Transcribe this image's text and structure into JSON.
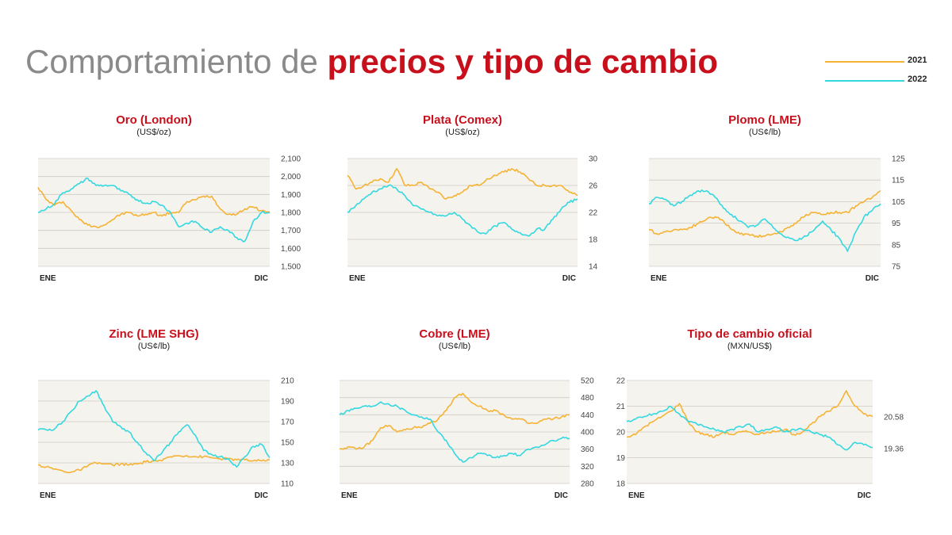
{
  "header": {
    "title_light": "Comportamiento de",
    "title_bold": "precios y tipo de cambio"
  },
  "legend": [
    {
      "label": "2021",
      "color": "#f5b335"
    },
    {
      "label": "2022",
      "color": "#35d8e0"
    }
  ],
  "colors": {
    "y2021": "#f5b335",
    "y2022": "#35d8e0",
    "accent": "#c8101c",
    "plot_bg": "#f5f3ee",
    "grid": "#cfcbc2"
  },
  "chart_data": [
    {
      "type": "line",
      "title": "Oro (London)",
      "unit": "(US$/oz)",
      "x_start": "ENE",
      "x_end": "DIC",
      "yticks": [
        "1,500",
        "1,600",
        "1,700",
        "1,800",
        "1,900",
        "2,000",
        "2,100"
      ],
      "ylim": [
        1500,
        2100
      ],
      "series": [
        {
          "name": "2021",
          "values": [
            1940,
            1870,
            1840,
            1860,
            1810,
            1760,
            1730,
            1720,
            1730,
            1760,
            1790,
            1800,
            1780,
            1790,
            1800,
            1780,
            1800,
            1800,
            1860,
            1870,
            1890,
            1890,
            1820,
            1790,
            1790,
            1820,
            1830,
            1810,
            1800
          ]
        },
        {
          "name": "2022",
          "values": [
            1800,
            1820,
            1850,
            1910,
            1930,
            1960,
            1990,
            1950,
            1950,
            1950,
            1920,
            1900,
            1870,
            1850,
            1860,
            1840,
            1800,
            1720,
            1740,
            1750,
            1710,
            1690,
            1720,
            1700,
            1660,
            1640,
            1750,
            1800,
            1800
          ]
        }
      ]
    },
    {
      "type": "line",
      "title": "Plata (Comex)",
      "unit": "(US$/oz)",
      "x_start": "ENE",
      "x_end": "DIC",
      "yticks": [
        "14",
        "18",
        "22",
        "26",
        "30"
      ],
      "ylim": [
        14,
        30
      ],
      "series": [
        {
          "name": "2021",
          "values": [
            27.5,
            25.5,
            26,
            26.5,
            27,
            26.5,
            28.5,
            26,
            26,
            26.5,
            25.5,
            25,
            24,
            24.5,
            25,
            26,
            26,
            27,
            27.5,
            28,
            28.5,
            28,
            27,
            26,
            26,
            26,
            26,
            25,
            24.5
          ]
        },
        {
          "name": "2022",
          "values": [
            22,
            23,
            24,
            25,
            25.5,
            26,
            25.5,
            24.5,
            23,
            22.5,
            22,
            21.5,
            21.5,
            22,
            21,
            20,
            19,
            19,
            20,
            20.5,
            19.5,
            19,
            18.5,
            19.5,
            19.5,
            21,
            22.5,
            23.5,
            24
          ]
        }
      ]
    },
    {
      "type": "line",
      "title": "Plomo (LME)",
      "unit": "(US¢/lb)",
      "x_start": "ENE",
      "x_end": "DIC",
      "yticks": [
        "75",
        "85",
        "95",
        "105",
        "115",
        "125"
      ],
      "ylim": [
        75,
        125
      ],
      "series": [
        {
          "name": "2021",
          "values": [
            92,
            90,
            91,
            92,
            92,
            93,
            95,
            97,
            98,
            96,
            92,
            90,
            90,
            89,
            89,
            90,
            91,
            93,
            96,
            99,
            100,
            99,
            100,
            100,
            100,
            103,
            105,
            107,
            110
          ]
        },
        {
          "name": "2022",
          "values": [
            104,
            107,
            106,
            103,
            105,
            108,
            110,
            110,
            107,
            102,
            99,
            96,
            93,
            94,
            97,
            93,
            90,
            88,
            87,
            89,
            92,
            96,
            92,
            88,
            82,
            91,
            98,
            101,
            104
          ]
        }
      ]
    },
    {
      "type": "line",
      "title": "Zinc (LME SHG)",
      "unit": "(US¢/lb)",
      "x_start": "ENE",
      "x_end": "DIC",
      "yticks": [
        "110",
        "130",
        "150",
        "170",
        "190",
        "210"
      ],
      "ylim": [
        110,
        210
      ],
      "series": [
        {
          "name": "2021",
          "values": [
            128,
            126,
            124,
            122,
            121,
            123,
            127,
            130,
            129,
            128,
            129,
            128,
            129,
            131,
            132,
            132,
            136,
            137,
            137,
            136,
            136,
            135,
            134,
            134,
            133,
            133,
            132,
            132,
            133
          ]
        },
        {
          "name": "2022",
          "values": [
            162,
            162,
            163,
            170,
            180,
            190,
            195,
            200,
            185,
            170,
            165,
            160,
            150,
            140,
            132,
            140,
            150,
            160,
            167,
            157,
            142,
            138,
            136,
            134,
            126,
            136,
            146,
            148,
            135
          ]
        }
      ]
    },
    {
      "type": "line",
      "title": "Cobre (LME)",
      "unit": "(US¢/lb)",
      "x_start": "ENE",
      "x_end": "DIC",
      "yticks": [
        "280",
        "320",
        "360",
        "400",
        "440",
        "480",
        "520"
      ],
      "ylim": [
        280,
        520
      ],
      "series": [
        {
          "name": "2021",
          "values": [
            360,
            365,
            360,
            365,
            380,
            410,
            415,
            400,
            405,
            410,
            410,
            420,
            430,
            450,
            480,
            490,
            470,
            460,
            450,
            450,
            440,
            430,
            430,
            420,
            420,
            430,
            430,
            435,
            440
          ]
        },
        {
          "name": "2022",
          "values": [
            440,
            450,
            455,
            460,
            460,
            470,
            465,
            460,
            450,
            440,
            435,
            430,
            400,
            380,
            350,
            330,
            340,
            350,
            345,
            340,
            345,
            350,
            345,
            360,
            365,
            370,
            380,
            385,
            385
          ]
        }
      ]
    },
    {
      "type": "line",
      "title": "Tipo de cambio oficial",
      "unit": "(MXN/US$)",
      "x_start": "ENE",
      "x_end": "DIC",
      "yticks": [
        "18",
        "19",
        "20",
        "21",
        "22"
      ],
      "ylim": [
        18,
        22
      ],
      "end_labels": [
        "20.58",
        "19.36"
      ],
      "series": [
        {
          "name": "2021",
          "values": [
            19.8,
            19.9,
            20.2,
            20.4,
            20.6,
            20.8,
            21.1,
            20.4,
            20.0,
            19.9,
            19.8,
            20.0,
            19.9,
            20.0,
            20.0,
            19.9,
            20.0,
            20.0,
            20.1,
            19.9,
            20.0,
            20.3,
            20.6,
            20.8,
            21.0,
            21.6,
            21.0,
            20.7,
            20.6
          ]
        },
        {
          "name": "2022",
          "values": [
            20.4,
            20.5,
            20.6,
            20.7,
            20.8,
            21.0,
            20.7,
            20.4,
            20.3,
            20.2,
            20.1,
            20.0,
            20.1,
            20.2,
            20.3,
            20.0,
            20.1,
            20.2,
            20.0,
            20.1,
            20.1,
            20.0,
            19.9,
            19.8,
            19.5,
            19.3,
            19.6,
            19.5,
            19.4
          ]
        }
      ]
    }
  ]
}
